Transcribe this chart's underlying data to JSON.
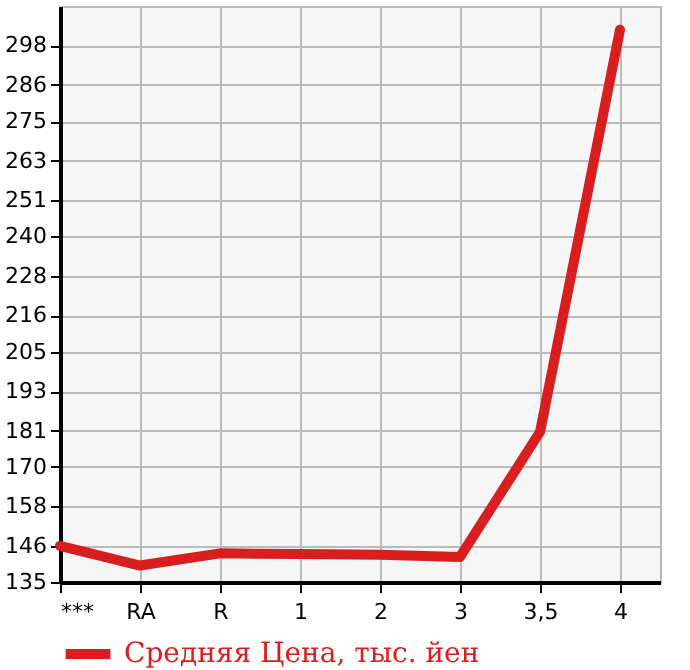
{
  "chart_data": {
    "type": "line",
    "categories": [
      "***",
      "RA",
      "R",
      "1",
      "2",
      "3",
      "3,5",
      "4"
    ],
    "series": [
      {
        "name": "Средняя Цена, тыс. йен",
        "color": "#d81e1e",
        "values": [
          146,
          140,
          143.7,
          143.5,
          143.3,
          142.6,
          180.6,
          302.8
        ]
      }
    ],
    "ylim": [
      135,
      310
    ],
    "yticks": [
      135,
      146,
      158,
      170,
      181,
      193,
      205,
      216,
      228,
      240,
      251,
      263,
      275,
      286,
      298
    ],
    "grid": true,
    "legend": "bottom left",
    "marker": "none",
    "line_style": "solid"
  }
}
